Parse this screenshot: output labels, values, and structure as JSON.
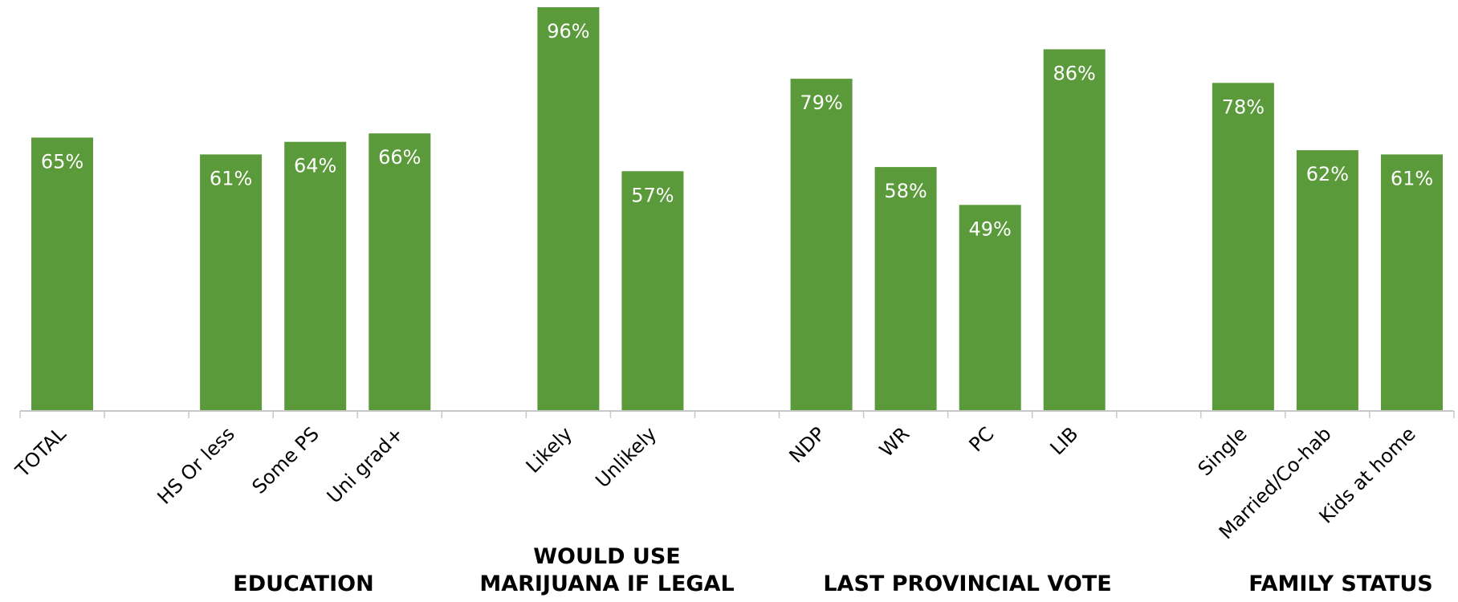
{
  "chart_data": {
    "type": "bar",
    "categories": [
      "TOTAL",
      "",
      "HS Or less",
      "Some PS",
      "Uni grad+",
      "",
      "Likely",
      "Unlikely",
      "",
      "NDP",
      "WR",
      "PC",
      "LIB",
      "",
      "Single",
      "Married/Co-hab",
      "Kids at home"
    ],
    "values": [
      65,
      null,
      61,
      64,
      66,
      null,
      96,
      57,
      null,
      79,
      58,
      49,
      86,
      null,
      78,
      62,
      61
    ],
    "data_labels": [
      "65%",
      "",
      "61%",
      "64%",
      "66%",
      "",
      "96%",
      "57%",
      "",
      "79%",
      "58%",
      "49%",
      "86%",
      "",
      "78%",
      "62%",
      "61%"
    ],
    "groups": [
      {
        "lines": [
          "EDUCATION"
        ],
        "start": 2,
        "end": 4
      },
      {
        "lines": [
          "WOULD USE",
          "MARIJUANA IF LEGAL"
        ],
        "start": 6,
        "end": 7
      },
      {
        "lines": [
          "LAST PROVINCIAL VOTE"
        ],
        "start": 9,
        "end": 12
      },
      {
        "lines": [
          "FAMILY STATUS"
        ],
        "start": 14,
        "end": 16
      }
    ],
    "ylim": [
      0,
      96
    ],
    "grid": false,
    "legend": "none",
    "bar_color": "#5b9a3a"
  }
}
